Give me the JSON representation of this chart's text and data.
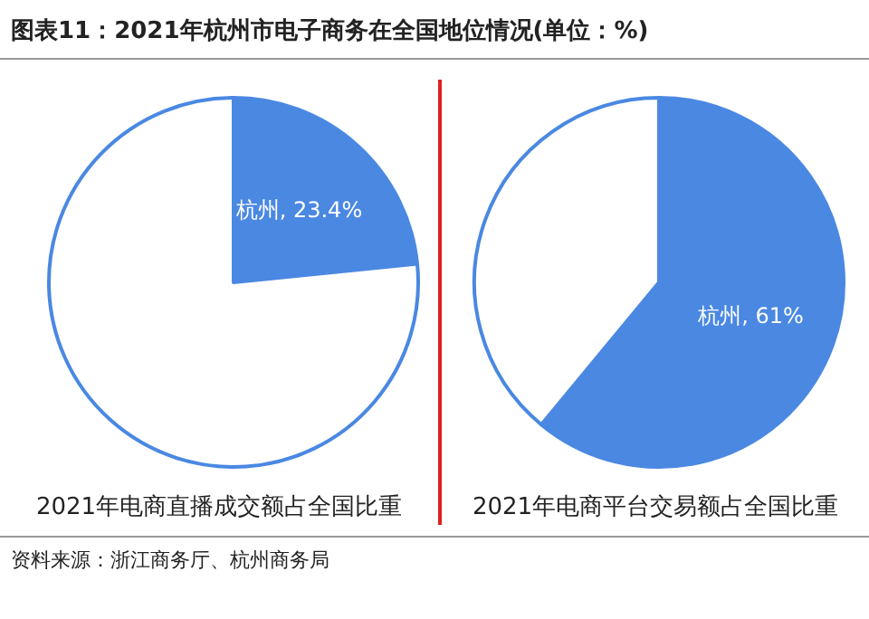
{
  "chart_data": [
    {
      "type": "pie",
      "title": "图表11：2021年杭州市电子商务在全国地位情况(单位：%)",
      "xlabel": "2021年电商直播成交额占全国比重",
      "categories": [
        "杭州",
        null
      ],
      "values": [
        23.4,
        76.6
      ],
      "colors": [
        "#4a88e2",
        "#ffffff"
      ],
      "value_labels": [
        "23.4%",
        null
      ],
      "annotations": [
        "资料来源：浙江商务厅、杭州商务局"
      ]
    },
    {
      "type": "pie",
      "xlabel": "2021年电商平台交易额占全国比重",
      "categories": [
        "杭州",
        null
      ],
      "values": [
        61,
        39
      ],
      "colors": [
        "#4a88e2",
        "#ffffff"
      ],
      "value_labels": [
        "61%",
        null
      ]
    }
  ]
}
